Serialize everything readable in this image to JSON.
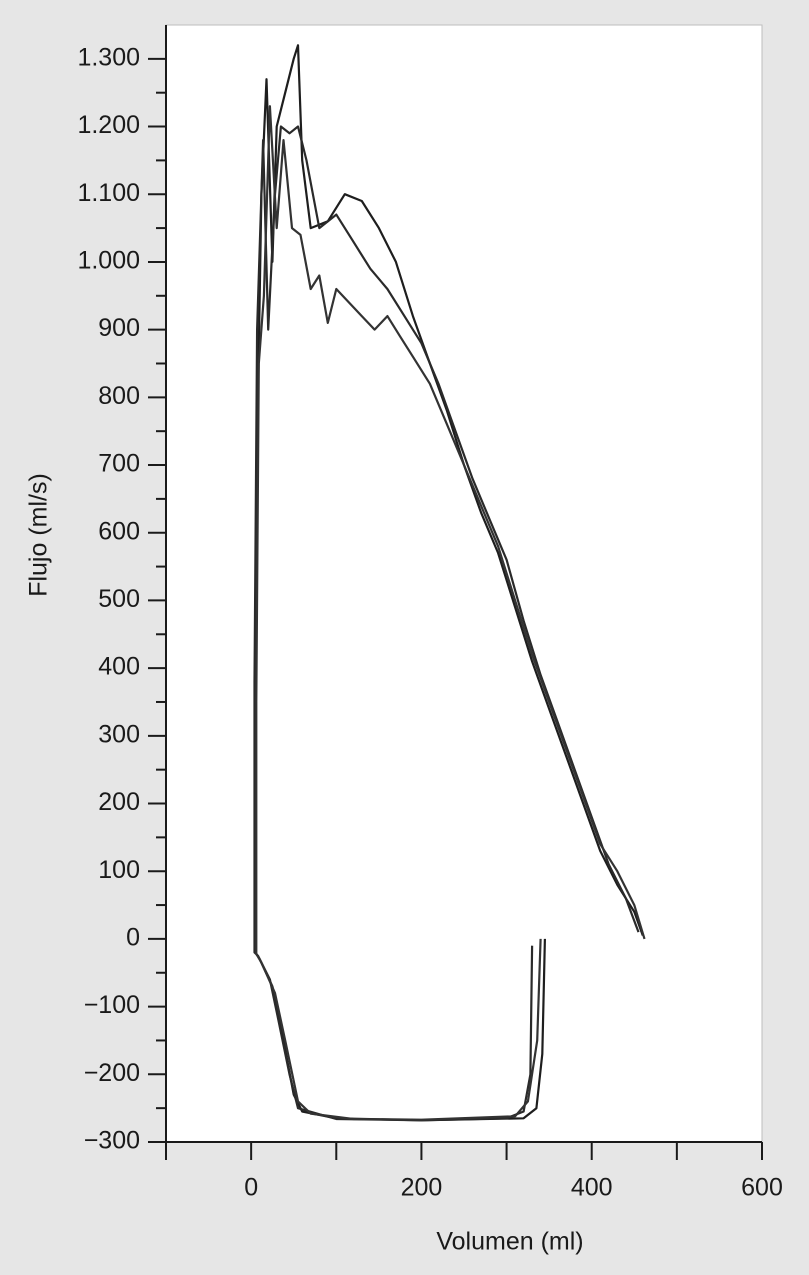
{
  "chart_data": {
    "type": "line",
    "x_label": "Volumen  (ml)",
    "y_label": "Flujo (ml/s)",
    "xlim": [
      -100,
      600
    ],
    "ylim": [
      -300,
      1350
    ],
    "xticks": [
      0,
      200,
      400,
      600
    ],
    "x_minor_ticks": [
      -100,
      100,
      300,
      500
    ],
    "yticks": [
      {
        "value": -300,
        "label": "−300"
      },
      {
        "value": -200,
        "label": "−200"
      },
      {
        "value": -100,
        "label": "−100"
      },
      0,
      100,
      200,
      300,
      400,
      500,
      600,
      700,
      800,
      900,
      {
        "value": 1000,
        "label": "1.000"
      },
      {
        "value": 1100,
        "label": "1.100"
      },
      {
        "value": 1200,
        "label": "1.200"
      },
      {
        "value": 1300,
        "label": "1.300"
      }
    ],
    "y_minor_ticks": [
      -250,
      -150,
      -50,
      50,
      150,
      250,
      350,
      450,
      550,
      650,
      750,
      850,
      950,
      1050,
      1150,
      1250
    ],
    "grid": false,
    "series": [
      {
        "color": "#1e1e1e",
        "x": [
          345,
          342,
          335,
          320,
          200,
          100,
          60,
          50,
          35,
          25,
          10,
          5,
          5,
          8,
          12,
          18,
          25,
          30,
          40,
          50,
          55,
          60,
          70,
          90,
          110,
          130,
          150,
          170,
          190,
          210,
          230,
          250,
          270,
          290,
          310,
          330,
          350,
          370,
          390,
          410,
          430,
          450,
          460
        ],
        "values": [
          0,
          -170,
          -250,
          -265,
          -268,
          -265,
          -255,
          -230,
          -130,
          -70,
          -30,
          -20,
          300,
          800,
          1100,
          1270,
          1000,
          1200,
          1250,
          1300,
          1320,
          1150,
          1050,
          1060,
          1100,
          1090,
          1050,
          1000,
          920,
          850,
          780,
          700,
          630,
          570,
          490,
          410,
          340,
          270,
          200,
          130,
          80,
          40,
          5
        ]
      },
      {
        "color": "#2a2a2a",
        "x": [
          330,
          328,
          320,
          300,
          200,
          100,
          55,
          45,
          32,
          22,
          8,
          4,
          4,
          7,
          14,
          20,
          28,
          35,
          45,
          55,
          65,
          80,
          100,
          120,
          140,
          160,
          180,
          200,
          220,
          240,
          260,
          280,
          300,
          320,
          340,
          360,
          380,
          400,
          420,
          440,
          455
        ],
        "values": [
          -10,
          -200,
          -255,
          -265,
          -268,
          -266,
          -250,
          -200,
          -120,
          -60,
          -25,
          -20,
          380,
          900,
          1180,
          900,
          1100,
          1200,
          1190,
          1200,
          1150,
          1050,
          1070,
          1030,
          990,
          960,
          920,
          880,
          820,
          750,
          680,
          620,
          560,
          470,
          390,
          320,
          250,
          180,
          110,
          60,
          10
        ]
      },
      {
        "color": "#333333",
        "x": [
          340,
          336,
          325,
          310,
          200,
          120,
          70,
          55,
          40,
          28,
          12,
          6,
          6,
          9,
          15,
          22,
          30,
          38,
          48,
          58,
          70,
          80,
          90,
          100,
          115,
          130,
          145,
          160,
          175,
          190,
          210,
          230,
          250,
          270,
          290,
          310,
          330,
          350,
          370,
          390,
          410,
          430,
          450,
          462
        ],
        "values": [
          0,
          -150,
          -240,
          -262,
          -267,
          -266,
          -258,
          -240,
          -150,
          -80,
          -35,
          -22,
          350,
          850,
          950,
          1230,
          1050,
          1180,
          1050,
          1040,
          960,
          980,
          910,
          960,
          940,
          920,
          900,
          920,
          890,
          860,
          820,
          760,
          700,
          640,
          580,
          500,
          420,
          350,
          280,
          210,
          140,
          100,
          50,
          0
        ]
      }
    ]
  }
}
